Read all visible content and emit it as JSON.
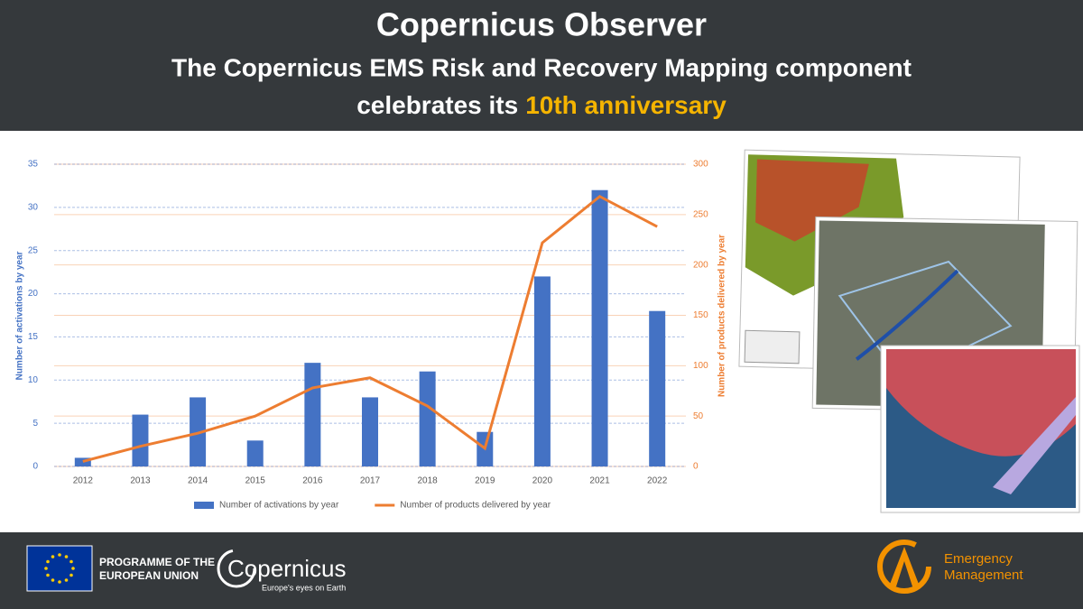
{
  "header": {
    "title": "Copernicus Observer",
    "subtitle_line1": "The Copernicus EMS Risk and Recovery Mapping component",
    "subtitle_line2": "celebrates its",
    "highlight": "10th anniversary"
  },
  "chart_data": {
    "type": "bar",
    "categories": [
      "2012",
      "2013",
      "2014",
      "2015",
      "2016",
      "2017",
      "2018",
      "2019",
      "2020",
      "2021",
      "2022"
    ],
    "series": [
      {
        "name": "Number of activations by year",
        "color": "#4472c4",
        "type": "bar",
        "values": [
          1,
          6,
          8,
          3,
          12,
          8,
          11,
          4,
          22,
          32,
          18
        ]
      },
      {
        "name": "Number of products delivered by year",
        "color": "#ed7d31",
        "type": "line",
        "axis": "y2",
        "values": [
          5,
          20,
          33,
          50,
          78,
          88,
          60,
          18,
          222,
          268,
          238
        ]
      }
    ],
    "ylabel": "Number of activations by year",
    "y2label": "Number of products delivered by year",
    "ylim": [
      0,
      35
    ],
    "yticks": [
      0,
      5,
      10,
      15,
      20,
      25,
      30,
      35
    ],
    "y2lim": [
      0,
      300
    ],
    "y2ticks": [
      0,
      50,
      100,
      150,
      200,
      250,
      300
    ],
    "grid": true,
    "legend": "bottom"
  },
  "footer": {
    "eu_line1": "PROGRAMME OF THE",
    "eu_line2": "EUROPEAN UNION",
    "copernicus": "Copernicus",
    "copernicus_tagline": "Europe's eyes on Earth",
    "ems_line1": "Emergency",
    "ems_line2": "Management"
  }
}
